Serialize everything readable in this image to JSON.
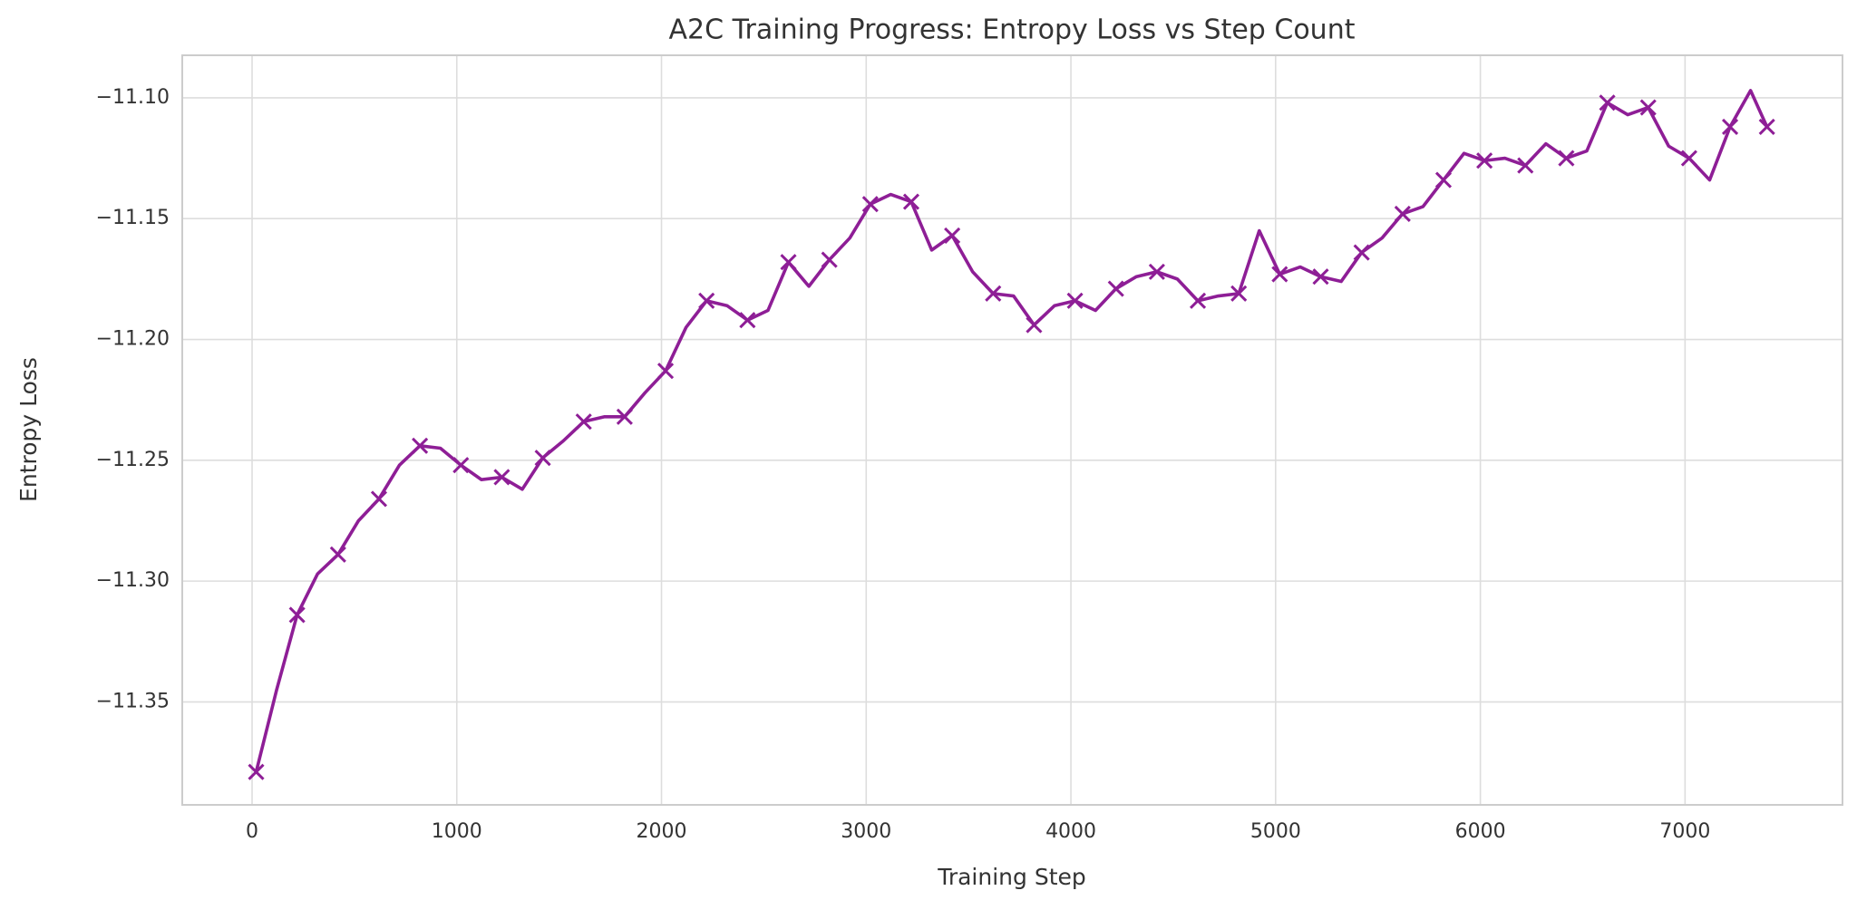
{
  "chart_data": {
    "type": "line",
    "title": "A2C Training Progress: Entropy Loss vs Step Count",
    "xlabel": "Training Step",
    "ylabel": "Entropy Loss",
    "x": [
      20,
      120,
      220,
      320,
      420,
      520,
      620,
      720,
      820,
      920,
      1020,
      1120,
      1220,
      1320,
      1420,
      1520,
      1620,
      1720,
      1820,
      1920,
      2020,
      2120,
      2220,
      2320,
      2420,
      2520,
      2620,
      2720,
      2820,
      2920,
      3020,
      3120,
      3220,
      3320,
      3420,
      3520,
      3620,
      3720,
      3820,
      3920,
      4020,
      4120,
      4220,
      4320,
      4420,
      4520,
      4620,
      4720,
      4820,
      4920,
      5020,
      5120,
      5220,
      5320,
      5420,
      5520,
      5620,
      5720,
      5820,
      5920,
      6020,
      6120,
      6220,
      6320,
      6420,
      6520,
      6620,
      6720,
      6820,
      6920,
      7020,
      7120,
      7220,
      7320,
      7400
    ],
    "series": [
      {
        "color": "#8e1e96",
        "marker": "x",
        "markevery": 2,
        "values": [
          -11.379,
          -11.345,
          -11.314,
          -11.297,
          -11.289,
          -11.275,
          -11.266,
          -11.252,
          -11.244,
          -11.245,
          -11.252,
          -11.258,
          -11.257,
          -11.262,
          -11.249,
          -11.242,
          -11.234,
          -11.232,
          -11.232,
          -11.222,
          -11.213,
          -11.195,
          -11.184,
          -11.186,
          -11.192,
          -11.188,
          -11.168,
          -11.178,
          -11.167,
          -11.158,
          -11.144,
          -11.14,
          -11.143,
          -11.163,
          -11.157,
          -11.172,
          -11.181,
          -11.182,
          -11.194,
          -11.186,
          -11.184,
          -11.188,
          -11.179,
          -11.174,
          -11.172,
          -11.175,
          -11.184,
          -11.182,
          -11.181,
          -11.155,
          -11.173,
          -11.17,
          -11.174,
          -11.176,
          -11.164,
          -11.158,
          -11.148,
          -11.145,
          -11.134,
          -11.123,
          -11.126,
          -11.125,
          -11.128,
          -11.119,
          -11.125,
          -11.122,
          -11.102,
          -11.107,
          -11.104,
          -11.12,
          -11.125,
          -11.134,
          -11.112,
          -11.097,
          -11.112
        ]
      }
    ],
    "xlim": [
      -341,
      7769
    ],
    "xticks": [
      0,
      1000,
      2000,
      3000,
      4000,
      5000,
      6000,
      7000
    ],
    "ylim": [
      -11.3926,
      -11.0824
    ],
    "yticks": [
      {
        "value": -11.35,
        "label": "−11.35"
      },
      {
        "value": -11.3,
        "label": "−11.30"
      },
      {
        "value": -11.25,
        "label": "−11.25"
      },
      {
        "value": -11.2,
        "label": "−11.20"
      },
      {
        "value": -11.15,
        "label": "−11.15"
      },
      {
        "value": -11.1,
        "label": "−11.10"
      }
    ],
    "grid": true
  }
}
